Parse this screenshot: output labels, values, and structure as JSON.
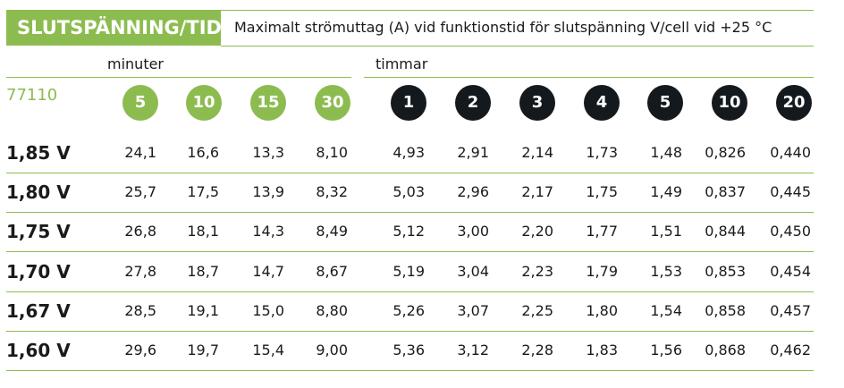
{
  "header": {
    "title": "SLUTSPÄNNING/TID",
    "subtitle": "Maximalt strömuttag (A) vid funktionstid för slutspänning V/cell vid +25 °C"
  },
  "model": "77110",
  "groups": {
    "minutes_label": "minuter",
    "hours_label": "timmar"
  },
  "minutes": [
    "5",
    "10",
    "15",
    "30"
  ],
  "hours": [
    "1",
    "2",
    "3",
    "4",
    "5",
    "10",
    "20"
  ],
  "colors": {
    "green": "#8cbc4f",
    "dark": "#14191e"
  },
  "rows": [
    {
      "voltage": "1,85 V",
      "values": [
        "24,1",
        "16,6",
        "13,3",
        "8,10",
        "4,93",
        "2,91",
        "2,14",
        "1,73",
        "1,48",
        "0,826",
        "0,440"
      ]
    },
    {
      "voltage": "1,80 V",
      "values": [
        "25,7",
        "17,5",
        "13,9",
        "8,32",
        "5,03",
        "2,96",
        "2,17",
        "1,75",
        "1,49",
        "0,837",
        "0,445"
      ]
    },
    {
      "voltage": "1,75 V",
      "values": [
        "26,8",
        "18,1",
        "14,3",
        "8,49",
        "5,12",
        "3,00",
        "2,20",
        "1,77",
        "1,51",
        "0,844",
        "0,450"
      ]
    },
    {
      "voltage": "1,70 V",
      "values": [
        "27,8",
        "18,7",
        "14,7",
        "8,67",
        "5,19",
        "3,04",
        "2,23",
        "1,79",
        "1,53",
        "0,853",
        "0,454"
      ]
    },
    {
      "voltage": "1,67 V",
      "values": [
        "28,5",
        "19,1",
        "15,0",
        "8,80",
        "5,26",
        "3,07",
        "2,25",
        "1,80",
        "1,54",
        "0,858",
        "0,457"
      ]
    },
    {
      "voltage": "1,60 V",
      "values": [
        "29,6",
        "19,7",
        "15,4",
        "9,00",
        "5,36",
        "3,12",
        "2,28",
        "1,83",
        "1,56",
        "0,868",
        "0,462"
      ]
    }
  ]
}
